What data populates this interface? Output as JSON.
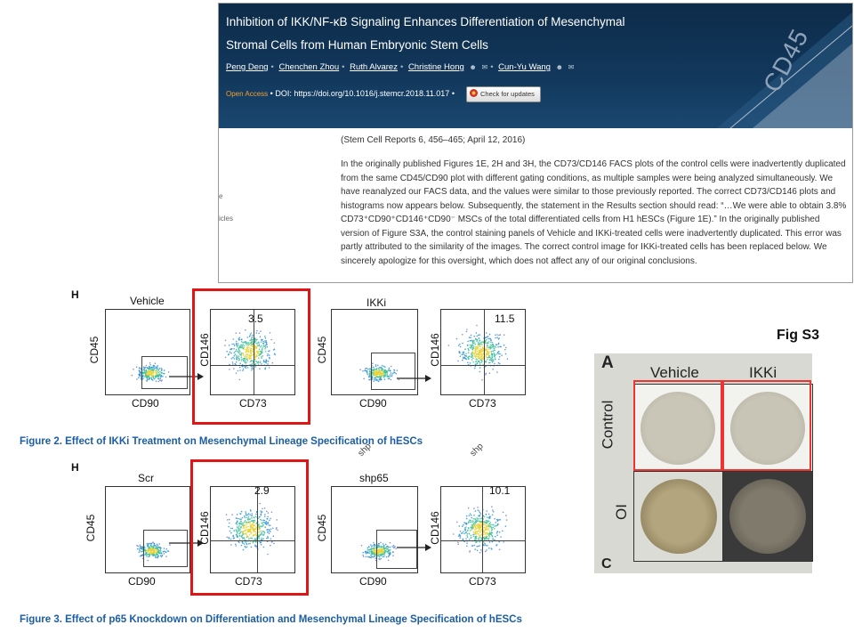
{
  "article": {
    "title_line1": "Inhibition of IKK/NF-κB Signaling Enhances Differentiation of Mesenchymal",
    "title_line2": "Stromal Cells from Human Embryonic Stem Cells",
    "authors": [
      "Peng Deng",
      "Chenchen Zhou",
      "Ruth Alvarez",
      "Christine Hong",
      "Cun-Yu Wang"
    ],
    "open_access": "Open Access",
    "doi_label": "DOI:",
    "doi": "https://doi.org/10.1016/j.stemcr.2018.11.017",
    "check_updates": "Check for updates",
    "banner_word": "CD45",
    "side_fragment_1": "e",
    "side_fragment_2": "icles",
    "citation": "(Stem Cell Reports 6, 456–465; April 12, 2016)",
    "paragraph": "In the originally published Figures 1E, 2H and 3H, the CD73/CD146 FACS plots of the control cells were inadvertently duplicated from the same CD45/CD90 plot with different gating conditions, as multiple samples were being analyzed simultaneously. We have reanalyzed our FACS data, and the values were similar to those previously reported. The correct CD73/CD146 plots and histograms now appears below. Subsequently, the statement in the Results section should read: “…We were able to obtain 3.8% CD73⁺CD90⁺CD146⁺CD90⁻ MSCs of the total differentiated cells from H1 hESCs (Figure 1E).” In the originally published version of Figure S3A, the control staining panels of Vehicle and IKKi-treated cells were inadvertently duplicated. This error was partly attributed to the similarity of the images. The correct control image for IKKi-treated cells has been replaced below. We sincerely apologize for this oversight, which does not affect any of our original conclusions."
  },
  "fig2": {
    "panel": "H",
    "caption": "Figure 2.  Effect of IKKi Treatment on Mesenchymal Lineage Specification of hESCs",
    "group1": "Vehicle",
    "group2": "IKKi",
    "value1": "3.5",
    "value2": "11.5"
  },
  "fig3": {
    "panel": "H",
    "caption": "Figure 3.  Effect of p65 Knockdown on Differentiation and Mesenchymal Lineage Specification of hESCs",
    "group1": "Scr",
    "group2": "shp65",
    "value1": "2.9",
    "value2": "10.1",
    "cut_text_1": "shp",
    "cut_text_2": "shp"
  },
  "axes": {
    "cd45": "CD45",
    "cd90": "CD90",
    "cd146": "CD146",
    "cd73": "CD73"
  },
  "figs3": {
    "label": "Fig S3",
    "panel": "A",
    "col1": "Vehicle",
    "col2": "IKKi",
    "row1": "Control",
    "row2": "OI",
    "next_panel": "C"
  },
  "colors": {
    "highlight": "#e01616",
    "caption": "#1b5ea3",
    "banner": "#12385c"
  }
}
